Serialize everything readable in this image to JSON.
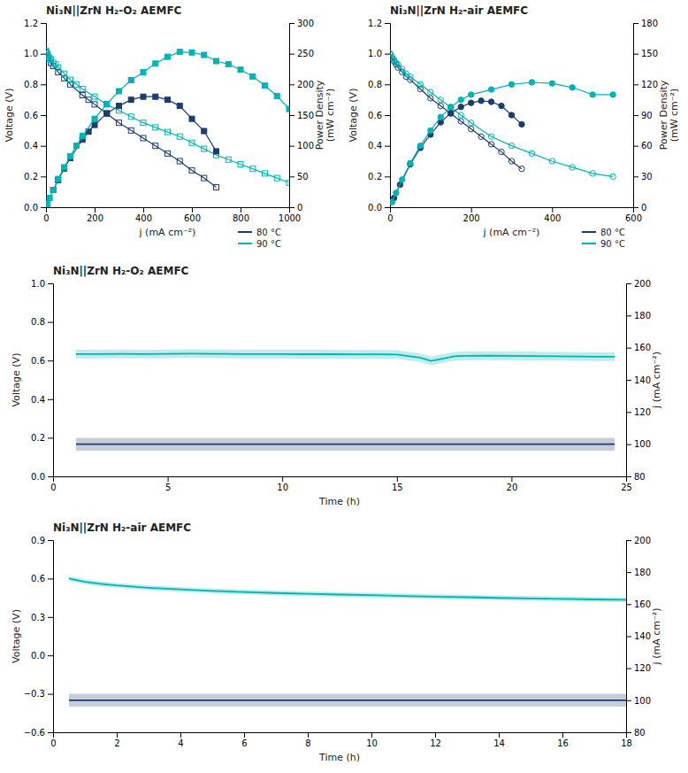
{
  "chart_data": [
    {
      "type": "line",
      "title": "Ni₃N||ZrN H₂-O₂ AEMFC",
      "x_label": "j (mA cm⁻²)",
      "y_label": "Voltage (V)",
      "y2_label": "Power Density\n(mW cm⁻²)",
      "xlim": [
        0,
        1000
      ],
      "ylim": [
        0,
        1.2
      ],
      "y2lim": [
        0,
        300
      ],
      "xticks": [
        0,
        200,
        400,
        600,
        800,
        1000
      ],
      "yticks": [
        {
          "value": 0,
          "label": "0.0"
        },
        0.2,
        0.4,
        0.6,
        0.8,
        {
          "value": 1.0,
          "label": "1.0"
        },
        1.2
      ],
      "y2ticks": [
        0,
        50,
        100,
        150,
        200,
        250,
        300
      ],
      "grid": false,
      "legend": "lower right",
      "series": [
        {
          "name": "80 °C",
          "color": "#1c3d6e",
          "marker": "open-square",
          "x": [
            0,
            5,
            10,
            20,
            30,
            50,
            75,
            100,
            150,
            175,
            200,
            250,
            300,
            350,
            400,
            450,
            500,
            550,
            600,
            650,
            700
          ],
          "values": [
            1.01,
            0.99,
            0.97,
            0.94,
            0.92,
            0.88,
            0.84,
            0.8,
            0.73,
            0.7,
            0.67,
            0.61,
            0.55,
            0.5,
            0.45,
            0.4,
            0.35,
            0.3,
            0.24,
            0.19,
            0.13
          ]
        },
        {
          "name": "90 °C",
          "color": "#00b4b4",
          "marker": "open-square",
          "x": [
            0,
            5,
            10,
            15,
            20,
            30,
            40,
            50,
            75,
            100,
            125,
            150,
            200,
            250,
            300,
            350,
            400,
            450,
            500,
            550,
            600,
            650,
            700,
            750,
            800,
            850,
            900,
            950,
            1000
          ],
          "values": [
            1.02,
            1.0,
            0.98,
            0.97,
            0.96,
            0.94,
            0.93,
            0.91,
            0.87,
            0.83,
            0.8,
            0.77,
            0.72,
            0.67,
            0.63,
            0.59,
            0.55,
            0.52,
            0.49,
            0.46,
            0.42,
            0.38,
            0.34,
            0.31,
            0.28,
            0.25,
            0.22,
            0.19,
            0.16
          ]
        },
        {
          "color": "#1c3d6e",
          "marker": "square",
          "axis": "y2",
          "x": [
            30,
            50,
            75,
            100,
            150,
            175,
            200,
            250,
            300,
            350,
            400,
            450,
            500,
            550,
            600,
            650,
            700
          ],
          "values": [
            28,
            44,
            63,
            80,
            110,
            123,
            134,
            153,
            165,
            175,
            180,
            180,
            175,
            165,
            144,
            124,
            91
          ]
        },
        {
          "color": "#00b4b4",
          "marker": "square",
          "axis": "y2",
          "x": [
            5,
            15,
            30,
            50,
            75,
            100,
            125,
            150,
            200,
            250,
            300,
            350,
            400,
            450,
            500,
            550,
            600,
            650,
            700,
            750,
            800,
            850,
            900,
            950,
            1000
          ],
          "values": [
            5,
            15,
            28,
            46,
            65,
            83,
            100,
            116,
            144,
            168,
            189,
            207,
            220,
            234,
            245,
            253,
            252,
            248,
            238,
            233,
            224,
            213,
            198,
            181,
            160
          ]
        }
      ]
    },
    {
      "type": "line",
      "title": "Ni₃N||ZrN H₂-air AEMFC",
      "x_label": "j (mA cm⁻²)",
      "y_label": "Voltage (V)",
      "y2_label": "Power Density\n(mW cm⁻²)",
      "xlim": [
        0,
        600
      ],
      "ylim": [
        0,
        1.2
      ],
      "y2lim": [
        0,
        180
      ],
      "xticks": [
        0,
        200,
        400,
        600
      ],
      "yticks": [
        {
          "value": 0,
          "label": "0.0"
        },
        0.2,
        0.4,
        0.6,
        0.8,
        {
          "value": 1.0,
          "label": "1.0"
        },
        1.2
      ],
      "y2ticks": [
        0,
        30,
        60,
        90,
        120,
        150,
        180
      ],
      "grid": false,
      "legend": "lower right",
      "series": [
        {
          "name": "80 °C",
          "color": "#1c3d6e",
          "marker": "open-circle",
          "x": [
            0,
            5,
            10,
            15,
            20,
            30,
            40,
            50,
            75,
            100,
            125,
            150,
            175,
            200,
            225,
            250,
            275,
            300,
            325
          ],
          "values": [
            1.0,
            0.97,
            0.95,
            0.93,
            0.91,
            0.88,
            0.85,
            0.83,
            0.77,
            0.71,
            0.66,
            0.61,
            0.56,
            0.51,
            0.46,
            0.41,
            0.36,
            0.3,
            0.25
          ]
        },
        {
          "name": "90 °C",
          "color": "#00b4b4",
          "marker": "open-circle",
          "x": [
            0,
            5,
            10,
            15,
            20,
            30,
            40,
            50,
            75,
            100,
            125,
            150,
            175,
            200,
            250,
            300,
            350,
            400,
            450,
            500,
            550
          ],
          "values": [
            1.0,
            0.98,
            0.96,
            0.94,
            0.93,
            0.9,
            0.87,
            0.85,
            0.8,
            0.75,
            0.7,
            0.65,
            0.6,
            0.55,
            0.46,
            0.4,
            0.35,
            0.3,
            0.26,
            0.22,
            0.2
          ]
        },
        {
          "color": "#1c3d6e",
          "marker": "circle",
          "axis": "y2",
          "x": [
            10,
            25,
            50,
            75,
            100,
            125,
            150,
            175,
            200,
            225,
            250,
            275,
            300,
            325
          ],
          "values": [
            9,
            22,
            42,
            58,
            71,
            83,
            92,
            98,
            102,
            104,
            103,
            99,
            90,
            81
          ]
        },
        {
          "color": "#00b4b4",
          "marker": "circle",
          "axis": "y2",
          "x": [
            5,
            15,
            30,
            50,
            75,
            100,
            125,
            150,
            175,
            200,
            250,
            300,
            350,
            400,
            450,
            500,
            550
          ],
          "values": [
            5,
            14,
            27,
            43,
            60,
            75,
            88,
            98,
            105,
            110,
            115,
            120,
            122,
            121,
            117,
            110,
            110
          ]
        }
      ]
    },
    {
      "type": "line",
      "title": "Ni₃N||ZrN H₂-O₂ AEMFC",
      "x_label": "Time (h)",
      "y_label": "Voltage (V)",
      "y2_label": "j (mA cm⁻²)",
      "xlim": [
        0,
        25
      ],
      "ylim": [
        0.0,
        1.0
      ],
      "y2lim": [
        80,
        200
      ],
      "xticks": [
        0,
        5,
        10,
        15,
        20,
        25
      ],
      "yticks": [
        {
          "value": 0,
          "label": "0.0"
        },
        0.2,
        0.4,
        0.6,
        0.8,
        {
          "value": 1.0,
          "label": "1.0"
        }
      ],
      "y2ticks": [
        80,
        100,
        120,
        140,
        160,
        180,
        200
      ],
      "grid": false,
      "series": [
        {
          "color": "#00b4b4",
          "error": 0.0225,
          "x": [
            1,
            2,
            3,
            4,
            5,
            6,
            7,
            8,
            9,
            10,
            11,
            12,
            13,
            14,
            15,
            16,
            16.5,
            17,
            17.5,
            18,
            19,
            20,
            21,
            22,
            23,
            24,
            24.5
          ],
          "values": [
            0.634,
            0.634,
            0.635,
            0.634,
            0.635,
            0.636,
            0.635,
            0.634,
            0.634,
            0.634,
            0.633,
            0.633,
            0.632,
            0.632,
            0.631,
            0.615,
            0.598,
            0.61,
            0.622,
            0.624,
            0.625,
            0.624,
            0.623,
            0.622,
            0.621,
            0.62,
            0.62
          ]
        },
        {
          "color": "#1c3d6e",
          "axis": "y2",
          "error": 4,
          "x": [
            1,
            2,
            3,
            4,
            5,
            6,
            7,
            8,
            9,
            10,
            11,
            12,
            13,
            14,
            15,
            16,
            16.5,
            17,
            17.5,
            18,
            19,
            20,
            21,
            22,
            23,
            24,
            24.5
          ],
          "values": [
            100,
            100,
            100,
            100,
            100,
            100,
            100,
            100,
            100,
            100,
            100,
            100,
            100,
            100,
            100,
            100,
            100,
            100,
            100,
            100,
            100,
            100,
            100,
            100,
            100,
            100,
            100
          ]
        }
      ]
    },
    {
      "type": "line",
      "title": "Ni₃N||ZrN H₂-air AEMFC",
      "x_label": "Time (h)",
      "y_label": "Voltage (V)",
      "y2_label": "j (mA cm⁻²)",
      "xlim": [
        0,
        18
      ],
      "ylim": [
        -0.6,
        0.9
      ],
      "y2lim": [
        80,
        200
      ],
      "xticks": [
        0,
        2,
        4,
        6,
        8,
        10,
        12,
        14,
        16,
        18
      ],
      "yticks": [
        {
          "value": -0.6,
          "label": "−0.6"
        },
        {
          "value": -0.3,
          "label": "−0.3"
        },
        {
          "value": 0,
          "label": "0.0"
        },
        0.3,
        0.6,
        0.9
      ],
      "y2ticks": [
        80,
        100,
        120,
        140,
        160,
        180,
        200
      ],
      "grid": false,
      "series": [
        {
          "color": "#00b4b4",
          "error": 0.019,
          "x": [
            0.5,
            1.0,
            1.5,
            2,
            3,
            4,
            5,
            6,
            7,
            8,
            9,
            10,
            11,
            12,
            13,
            14,
            15,
            16,
            17,
            18
          ],
          "values": [
            0.6,
            0.575,
            0.558,
            0.546,
            0.528,
            0.515,
            0.504,
            0.495,
            0.487,
            0.481,
            0.475,
            0.47,
            0.464,
            0.459,
            0.454,
            0.449,
            0.445,
            0.441,
            0.437,
            0.434
          ]
        },
        {
          "color": "#1c3d6e",
          "axis": "y2",
          "error": 4,
          "x": [
            0.5,
            1.0,
            1.5,
            2,
            3,
            4,
            5,
            6,
            7,
            8,
            9,
            10,
            11,
            12,
            13,
            14,
            15,
            16,
            17,
            18
          ],
          "values": [
            100,
            100,
            100,
            100,
            100,
            100,
            100,
            100,
            100,
            100,
            100,
            100,
            100,
            100,
            100,
            100,
            100,
            100,
            100,
            100
          ]
        }
      ]
    }
  ]
}
